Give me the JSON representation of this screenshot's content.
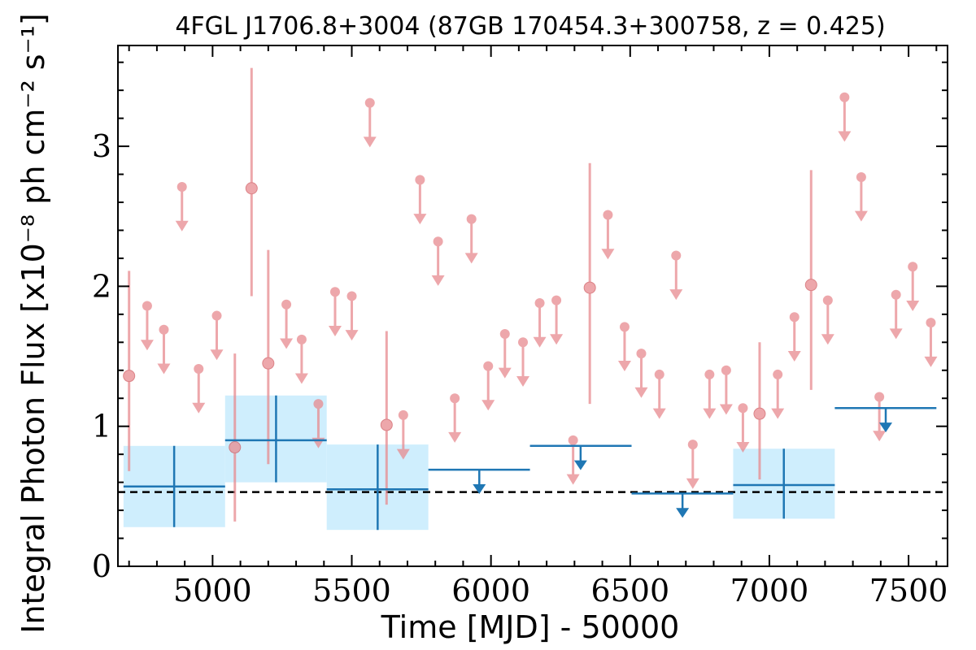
{
  "chart_data": {
    "type": "scatter",
    "title": "4FGL J1706.8+3004 (87GB 170454.3+300758, z = 0.425)",
    "xlabel": "Time [MJD] - 50000",
    "ylabel": "Integral Photon Flux [x10⁻⁸ ph cm⁻² s⁻¹]",
    "xlim": [
      4660,
      7640
    ],
    "ylim": [
      0,
      3.72
    ],
    "x_ticks": [
      5000,
      5500,
      6000,
      6500,
      7000,
      7500
    ],
    "y_ticks": [
      0,
      1,
      2,
      3
    ],
    "grid": false,
    "reference_level": 0.53,
    "colors": {
      "short_bins": "#e88a8f",
      "long_bins": "#1f77b4",
      "long_bins_band": "#cfeefd",
      "reference_line": "#000000"
    },
    "short_bins_detections": [
      {
        "x": 4700,
        "y": 1.36,
        "y_low": 0.68,
        "y_high": 2.11
      },
      {
        "x": 5080,
        "y": 0.85,
        "y_low": 0.32,
        "y_high": 1.52
      },
      {
        "x": 5140,
        "y": 2.7,
        "y_low": 1.93,
        "y_high": 3.56
      },
      {
        "x": 5200,
        "y": 1.45,
        "y_low": 0.73,
        "y_high": 2.26
      },
      {
        "x": 5625,
        "y": 1.01,
        "y_low": 0.44,
        "y_high": 1.68
      },
      {
        "x": 6355,
        "y": 1.99,
        "y_low": 1.16,
        "y_high": 2.88
      },
      {
        "x": 6965,
        "y": 1.09,
        "y_low": 0.62,
        "y_high": 1.6
      },
      {
        "x": 7150,
        "y": 2.01,
        "y_low": 1.26,
        "y_high": 2.83
      }
    ],
    "short_bins_upper_limits": [
      {
        "x": 4765,
        "y": 1.86
      },
      {
        "x": 4825,
        "y": 1.69
      },
      {
        "x": 4890,
        "y": 2.71
      },
      {
        "x": 4950,
        "y": 1.41
      },
      {
        "x": 5015,
        "y": 1.79
      },
      {
        "x": 5265,
        "y": 1.87
      },
      {
        "x": 5320,
        "y": 1.62
      },
      {
        "x": 5380,
        "y": 1.16
      },
      {
        "x": 5440,
        "y": 1.96
      },
      {
        "x": 5500,
        "y": 1.93
      },
      {
        "x": 5565,
        "y": 3.31
      },
      {
        "x": 5685,
        "y": 1.08
      },
      {
        "x": 5745,
        "y": 2.76
      },
      {
        "x": 5810,
        "y": 2.32
      },
      {
        "x": 5870,
        "y": 1.2
      },
      {
        "x": 5930,
        "y": 2.48
      },
      {
        "x": 5990,
        "y": 1.43
      },
      {
        "x": 6050,
        "y": 1.66
      },
      {
        "x": 6115,
        "y": 1.6
      },
      {
        "x": 6175,
        "y": 1.88
      },
      {
        "x": 6235,
        "y": 1.9
      },
      {
        "x": 6295,
        "y": 0.9
      },
      {
        "x": 6420,
        "y": 2.51
      },
      {
        "x": 6480,
        "y": 1.71
      },
      {
        "x": 6540,
        "y": 1.52
      },
      {
        "x": 6605,
        "y": 1.37
      },
      {
        "x": 6665,
        "y": 2.22
      },
      {
        "x": 6725,
        "y": 0.87
      },
      {
        "x": 6785,
        "y": 1.37
      },
      {
        "x": 6845,
        "y": 1.4
      },
      {
        "x": 6905,
        "y": 1.13
      },
      {
        "x": 7030,
        "y": 1.37
      },
      {
        "x": 7090,
        "y": 1.78
      },
      {
        "x": 7210,
        "y": 1.9
      },
      {
        "x": 7270,
        "y": 3.35
      },
      {
        "x": 7330,
        "y": 2.78
      },
      {
        "x": 7395,
        "y": 1.21
      },
      {
        "x": 7455,
        "y": 1.94
      },
      {
        "x": 7515,
        "y": 2.14
      },
      {
        "x": 7580,
        "y": 1.74
      }
    ],
    "long_bins_detections": [
      {
        "x_start": 4680,
        "x_end": 5045,
        "x": 4862,
        "y": 0.57,
        "y_low": 0.28,
        "y_high": 0.86
      },
      {
        "x_start": 5045,
        "x_end": 5410,
        "x": 5228,
        "y": 0.9,
        "y_low": 0.6,
        "y_high": 1.22
      },
      {
        "x_start": 5410,
        "x_end": 5775,
        "x": 5593,
        "y": 0.55,
        "y_low": 0.26,
        "y_high": 0.87
      },
      {
        "x_start": 6870,
        "x_end": 7235,
        "x": 7052,
        "y": 0.58,
        "y_low": 0.34,
        "y_high": 0.84
      }
    ],
    "long_bins_upper_limits": [
      {
        "x_start": 5775,
        "x_end": 6140,
        "x": 5958,
        "y": 0.69
      },
      {
        "x_start": 6140,
        "x_end": 6505,
        "x": 6322,
        "y": 0.86
      },
      {
        "x_start": 6505,
        "x_end": 6870,
        "x": 6688,
        "y": 0.52
      },
      {
        "x_start": 7235,
        "x_end": 7600,
        "x": 7418,
        "y": 1.13
      }
    ]
  }
}
